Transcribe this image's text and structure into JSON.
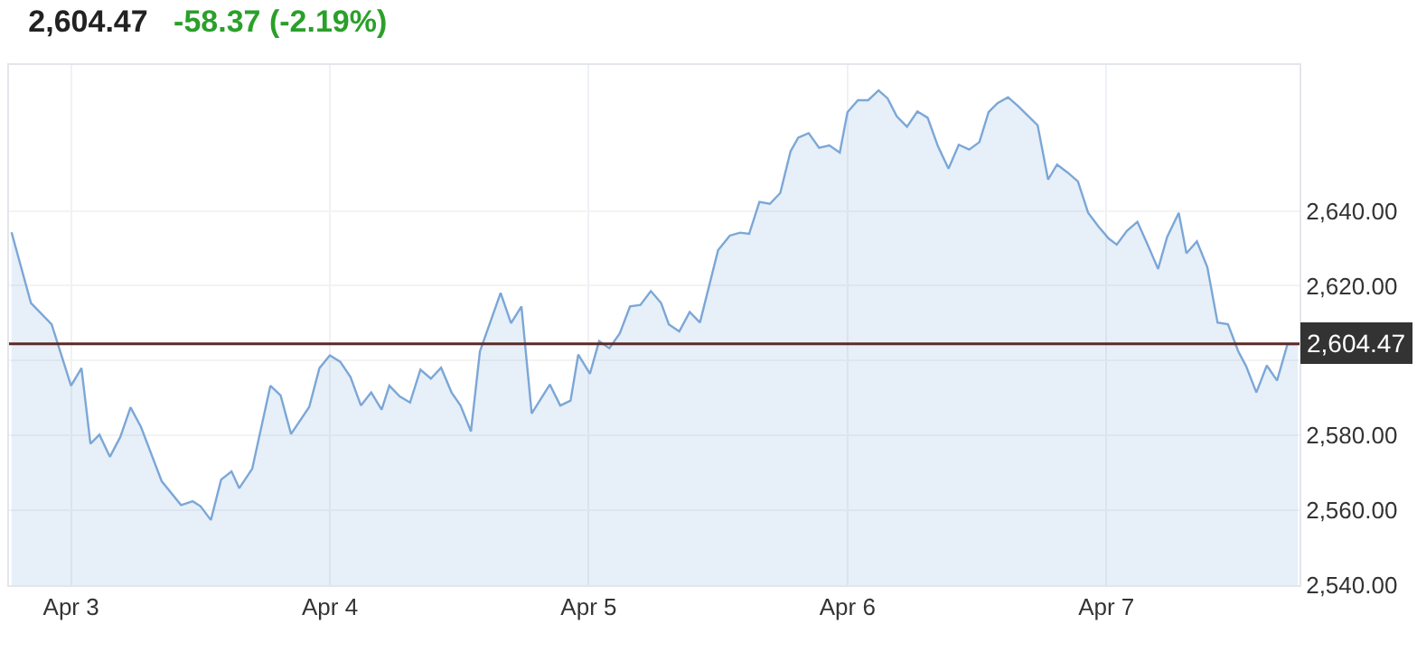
{
  "chart_data": {
    "type": "area",
    "title": "2,604.47",
    "subtitle": "-58.37 (-2.19%)",
    "x": [
      "--04-02T18:29",
      "--04-02T20:17",
      "--04-02T22:12",
      "--04-03T00:00",
      "--04-03T00:58",
      "--04-03T01:48",
      "--04-03T02:38",
      "--04-03T03:36",
      "--04-03T04:34",
      "--04-03T05:31",
      "--04-03T06:29",
      "--04-03T08:24",
      "--04-03T10:12",
      "--04-03T11:17",
      "--04-03T12:00",
      "--04-03T12:58",
      "--04-03T13:55",
      "--04-03T14:53",
      "--04-03T15:36",
      "--04-03T16:48",
      "--04-03T18:29",
      "--04-03T19:26",
      "--04-03T20:24",
      "--04-03T22:05",
      "--04-03T23:02",
      "--04-04T00:00",
      "--04-04T00:58",
      "--04-04T01:55",
      "--04-04T02:53",
      "--04-04T03:50",
      "--04-04T04:48",
      "--04-04T05:31",
      "--04-04T06:29",
      "--04-04T07:26",
      "--04-04T08:24",
      "--04-04T09:22",
      "--04-04T10:19",
      "--04-04T11:17",
      "--04-04T12:07",
      "--04-04T13:05",
      "--04-04T13:55",
      "--04-04T15:50",
      "--04-04T16:48",
      "--04-04T17:46",
      "--04-04T18:43",
      "--04-04T20:24",
      "--04-04T21:22",
      "--04-04T22:19",
      "--04-04T23:02",
      "--04-05T00:07",
      "--04-05T00:58",
      "--04-05T01:55",
      "--04-05T02:53",
      "--04-05T03:50",
      "--04-05T04:48",
      "--04-05T05:46",
      "--04-05T06:43",
      "--04-05T07:26",
      "--04-05T08:24",
      "--04-05T09:22",
      "--04-05T10:19",
      "--04-05T12:00",
      "--04-05T13:05",
      "--04-05T14:02",
      "--04-05T14:53",
      "--04-05T15:50",
      "--04-05T16:48",
      "--04-05T17:46",
      "--04-05T18:43",
      "--04-05T19:26",
      "--04-05T20:24",
      "--04-05T21:22",
      "--04-05T22:19",
      "--04-05T23:17",
      "--04-06T00:00",
      "--04-06T00:58",
      "--04-06T01:55",
      "--04-06T02:53",
      "--04-06T03:43",
      "--04-06T04:34",
      "--04-06T05:31",
      "--04-06T06:29",
      "--04-06T07:26",
      "--04-06T08:24",
      "--04-06T09:22",
      "--04-06T10:19",
      "--04-06T11:17",
      "--04-06T12:14",
      "--04-06T13:05",
      "--04-06T13:55",
      "--04-06T14:53",
      "--04-06T15:50",
      "--04-06T16:41",
      "--04-06T17:38",
      "--04-06T18:36",
      "--04-06T19:26",
      "--04-06T20:24",
      "--04-06T21:22",
      "--04-06T22:19",
      "--04-06T23:17",
      "--04-07T00:14",
      "--04-07T00:58",
      "--04-07T01:55",
      "--04-07T02:53",
      "--04-07T03:50",
      "--04-07T04:48",
      "--04-07T05:38",
      "--04-07T06:43",
      "--04-07T07:26",
      "--04-07T08:24",
      "--04-07T09:22",
      "--04-07T10:19",
      "--04-07T11:17",
      "--04-07T12:14",
      "--04-07T12:58",
      "--04-07T13:55",
      "--04-07T14:53",
      "--04-07T15:50",
      "--04-07T16:48",
      "--04-07T17:46"
    ],
    "series": [
      {
        "color": "#7ba7d7",
        "values": [
          2634.3,
          2615.4,
          2609.7,
          2593.3,
          2598.0,
          2577.8,
          2580.2,
          2574.3,
          2579.6,
          2587.5,
          2582.3,
          2567.8,
          2561.4,
          2562.4,
          2561.1,
          2557.4,
          2568.2,
          2570.4,
          2565.9,
          2571.1,
          2593.3,
          2590.7,
          2580.4,
          2587.6,
          2598.0,
          2601.4,
          2599.7,
          2595.6,
          2588.0,
          2591.5,
          2586.9,
          2593.3,
          2590.4,
          2588.8,
          2597.6,
          2595.2,
          2598.1,
          2591.5,
          2588.0,
          2581.1,
          2602.5,
          2618.1,
          2610.0,
          2614.5,
          2585.9,
          2593.6,
          2588.0,
          2589.3,
          2601.6,
          2596.5,
          2605.2,
          2603.3,
          2607.3,
          2614.5,
          2614.9,
          2618.6,
          2615.4,
          2609.7,
          2607.8,
          2613.0,
          2610.2,
          2629.5,
          2633.4,
          2634.2,
          2633.9,
          2642.4,
          2641.9,
          2644.8,
          2655.9,
          2659.6,
          2660.8,
          2656.9,
          2657.5,
          2655.6,
          2666.4,
          2669.6,
          2669.6,
          2672.2,
          2670.1,
          2665.3,
          2662.5,
          2666.6,
          2664.9,
          2657.2,
          2651.3,
          2657.7,
          2656.4,
          2658.4,
          2666.4,
          2668.8,
          2670.4,
          2668.0,
          2665.6,
          2662.9,
          2648.4,
          2652.4,
          2650.3,
          2647.9,
          2639.5,
          2635.8,
          2632.6,
          2631.0,
          2634.7,
          2637.1,
          2631.0,
          2624.5,
          2633.0,
          2639.5,
          2628.7,
          2631.9,
          2625.0,
          2610.2,
          2609.7,
          2602.5,
          2598.5,
          2591.5,
          2598.7,
          2594.7,
          2604.4,
          2604.4
        ]
      }
    ],
    "xlim": [
      "--04-02T18:15",
      "--04-07T17:55"
    ],
    "xticks": [
      {
        "value": "--04-03",
        "label": "Apr 3"
      },
      {
        "value": "--04-04",
        "label": "Apr 4"
      },
      {
        "value": "--04-05",
        "label": "Apr 5"
      },
      {
        "value": "--04-06",
        "label": "Apr 6"
      },
      {
        "value": "--04-07",
        "label": "Apr 7"
      }
    ],
    "ylim": [
      2540,
      2679
    ],
    "yticks": [
      {
        "value": 2540,
        "label": "2,540.00"
      },
      {
        "value": 2560,
        "label": "2,560.00"
      },
      {
        "value": 2580,
        "label": "2,580.00"
      },
      {
        "value": 2600,
        "label": null
      },
      {
        "value": 2620,
        "label": "2,620.00"
      },
      {
        "value": 2640,
        "label": "2,640.00"
      }
    ],
    "ref_lines": [
      {
        "axis": "y",
        "value": 2604.47,
        "label": "2,604.47",
        "color": "#5a2a2a"
      }
    ],
    "grid": true,
    "marker": "none",
    "line_style": "solid"
  }
}
